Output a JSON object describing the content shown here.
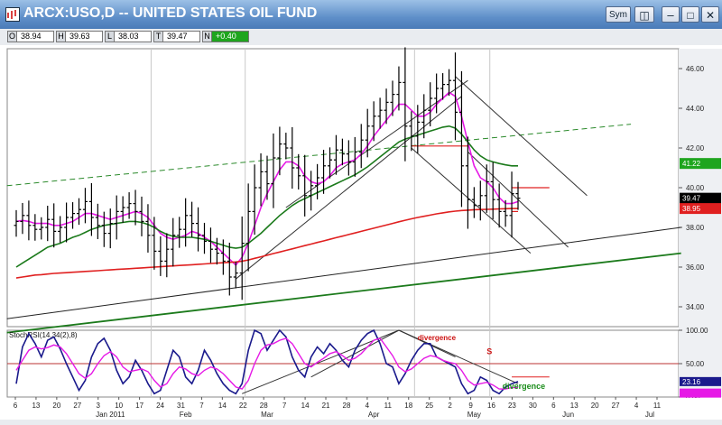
{
  "window": {
    "title": "ARCX:USO,D -- UNITED STATES OIL FUND",
    "sym_button": "Sym",
    "minimize_symbol": "–",
    "maximize_symbol": "□",
    "close_symbol": "✕",
    "icon": "chart-icon"
  },
  "quote": {
    "open_label": "O",
    "open": "38.94",
    "high_label": "H",
    "high": "39.63",
    "low_label": "L",
    "low": "38.03",
    "close_label": "T",
    "close": "39.47",
    "change_label": "N",
    "change": "+0.40",
    "change_color": "#1ea51e"
  },
  "chart_data": [
    {
      "type": "line",
      "panel": "price",
      "price_style": "OHLC bars",
      "y_axis_ticks": [
        "46.00",
        "44.00",
        "42.00",
        "40.00",
        "38.00",
        "36.00",
        "34.00"
      ],
      "ylim": [
        33.0,
        47.0
      ],
      "x_tick_labels": [
        "6",
        "13",
        "20",
        "27",
        "3",
        "10",
        "17",
        "24",
        "31",
        "7",
        "14",
        "22",
        "28",
        "7",
        "14",
        "21",
        "28",
        "4",
        "11",
        "18",
        "25",
        "2",
        "9",
        "16",
        "23",
        "30",
        "6",
        "13",
        "20",
        "27",
        "4",
        "11"
      ],
      "month_labels": [
        "Jan 2011",
        "Feb",
        "Mar",
        "Apr",
        "May",
        "Jun",
        "Jul"
      ],
      "price_labels": [
        {
          "text": "41.22",
          "bg": "#1ea51e",
          "value": 41.22
        },
        {
          "text": "39.47",
          "bg": "#000000",
          "value": 39.47
        },
        {
          "text": "38.95",
          "bg": "#e02020",
          "value": 38.95
        }
      ],
      "close": [
        38.3,
        38.6,
        38.1,
        37.9,
        38.0,
        38.4,
        37.8,
        38.0,
        38.5,
        38.7,
        38.9,
        39.3,
        38.5,
        38.1,
        37.7,
        38.2,
        38.8,
        39.0,
        39.2,
        38.8,
        38.3,
        37.6,
        36.8,
        36.3,
        36.9,
        37.6,
        37.9,
        38.6,
        38.2,
        37.6,
        37.3,
        36.9,
        36.7,
        36.3,
        35.5,
        35.7,
        37.2,
        38.8,
        40.0,
        40.8,
        40.2,
        41.5,
        42.2,
        42.0,
        41.0,
        40.6,
        39.6,
        40.1,
        40.5,
        41.1,
        41.4,
        41.9,
        41.7,
        41.3,
        41.8,
        42.4,
        43.1,
        43.6,
        43.9,
        44.3,
        44.7,
        45.3,
        43.1,
        42.6,
        43.3,
        43.9,
        44.5,
        45.0,
        45.2,
        45.4,
        43.8,
        41.1,
        39.4,
        39.1,
        39.6,
        40.3,
        39.4,
        38.8,
        38.6,
        39.7,
        39.47
      ],
      "series": [
        {
          "name": "",
          "color": "#e619e6",
          "values": [
            38.3,
            38.35,
            38.3,
            38.2,
            38.2,
            38.2,
            38.1,
            38.1,
            38.2,
            38.3,
            38.5,
            38.7,
            38.7,
            38.6,
            38.5,
            38.4,
            38.5,
            38.6,
            38.7,
            38.8,
            38.7,
            38.5,
            38.1,
            37.7,
            37.5,
            37.4,
            37.5,
            37.6,
            37.8,
            37.7,
            37.5,
            37.3,
            37.0,
            36.7,
            36.4,
            36.1,
            36.5,
            37.2,
            38.1,
            39.0,
            39.7,
            40.3,
            40.9,
            41.3,
            41.3,
            41.1,
            40.6,
            40.3,
            40.2,
            40.3,
            40.6,
            41.0,
            41.2,
            41.3,
            41.4,
            41.7,
            42.1,
            42.6,
            43.0,
            43.4,
            43.8,
            44.2,
            44.2,
            43.9,
            43.6,
            43.6,
            43.8,
            44.2,
            44.5,
            44.8,
            44.6,
            43.6,
            42.3,
            41.1,
            40.5,
            40.3,
            40.0,
            39.5,
            39.2,
            39.2,
            39.3
          ]
        },
        {
          "name": "",
          "color": "#1b7a1b",
          "values": [
            36.0,
            36.2,
            36.4,
            36.6,
            36.8,
            37.0,
            37.1,
            37.2,
            37.35,
            37.5,
            37.6,
            37.75,
            37.9,
            38.0,
            38.1,
            38.15,
            38.2,
            38.25,
            38.3,
            38.3,
            38.25,
            38.15,
            38.0,
            37.8,
            37.65,
            37.55,
            37.5,
            37.5,
            37.5,
            37.45,
            37.4,
            37.3,
            37.2,
            37.1,
            37.0,
            36.95,
            37.0,
            37.2,
            37.45,
            37.7,
            38.0,
            38.3,
            38.6,
            38.85,
            39.1,
            39.3,
            39.45,
            39.6,
            39.75,
            39.9,
            40.05,
            40.2,
            40.35,
            40.5,
            40.65,
            40.85,
            41.05,
            41.3,
            41.55,
            41.8,
            42.05,
            42.3,
            42.45,
            42.55,
            42.65,
            42.75,
            42.85,
            42.95,
            43.05,
            43.1,
            43.0,
            42.7,
            42.3,
            41.9,
            41.6,
            41.4,
            41.3,
            41.22,
            41.15,
            41.1,
            41.1
          ]
        },
        {
          "name": "",
          "color": "#e02020",
          "values": [
            35.45,
            35.5,
            35.55,
            35.6,
            35.62,
            35.65,
            35.68,
            35.7,
            35.72,
            35.74,
            35.76,
            35.78,
            35.8,
            35.82,
            35.84,
            35.86,
            35.88,
            35.9,
            35.92,
            35.94,
            35.96,
            35.98,
            36.0,
            36.02,
            36.04,
            36.06,
            36.08,
            36.1,
            36.12,
            36.14,
            36.16,
            36.18,
            36.2,
            36.22,
            36.24,
            36.26,
            36.3,
            36.36,
            36.44,
            36.52,
            36.6,
            36.68,
            36.76,
            36.84,
            36.92,
            37.0,
            37.08,
            37.16,
            37.24,
            37.32,
            37.4,
            37.48,
            37.56,
            37.64,
            37.72,
            37.8,
            37.88,
            37.96,
            38.04,
            38.12,
            38.2,
            38.28,
            38.36,
            38.43,
            38.5,
            38.56,
            38.62,
            38.68,
            38.73,
            38.78,
            38.82,
            38.85,
            38.87,
            38.89,
            38.9,
            38.91,
            38.92,
            38.93,
            38.94,
            38.95,
            38.95
          ]
        }
      ],
      "annotations": []
    },
    {
      "type": "line",
      "panel": "indicator",
      "title": "StochRSI(14,34(2),8)",
      "y_axis_ticks": [
        "100.00",
        "50.00",
        "0.00"
      ],
      "ylim": [
        0,
        100
      ],
      "price_labels": [
        {
          "text": "23.16",
          "bg": "#1a1a8c",
          "value": 23.16
        },
        {
          "text": "",
          "bg": "#e619e6",
          "value": 14
        }
      ],
      "series": [
        {
          "name": "",
          "color": "#1a1a8c",
          "values": [
            20,
            75,
            95,
            80,
            60,
            85,
            90,
            72,
            50,
            30,
            10,
            25,
            60,
            80,
            88,
            70,
            40,
            20,
            30,
            55,
            40,
            20,
            5,
            10,
            40,
            70,
            60,
            30,
            20,
            40,
            70,
            55,
            35,
            20,
            10,
            5,
            20,
            70,
            100,
            95,
            70,
            85,
            100,
            90,
            60,
            40,
            30,
            60,
            75,
            65,
            80,
            70,
            55,
            45,
            70,
            85,
            95,
            100,
            80,
            50,
            45,
            20,
            35,
            55,
            70,
            80,
            80,
            60,
            55,
            50,
            45,
            20,
            5,
            10,
            30,
            25,
            10,
            5,
            15,
            20,
            23.16
          ]
        },
        {
          "name": "",
          "color": "#e619e6",
          "values": [
            40,
            55,
            70,
            75,
            72,
            74,
            78,
            75,
            65,
            50,
            35,
            28,
            35,
            50,
            62,
            68,
            60,
            45,
            38,
            40,
            42,
            38,
            25,
            15,
            20,
            35,
            45,
            42,
            35,
            32,
            40,
            45,
            42,
            35,
            25,
            15,
            12,
            25,
            50,
            70,
            78,
            80,
            85,
            88,
            80,
            65,
            50,
            45,
            52,
            58,
            65,
            68,
            62,
            55,
            58,
            65,
            75,
            85,
            88,
            75,
            62,
            45,
            38,
            42,
            50,
            58,
            62,
            60,
            55,
            52,
            50,
            40,
            25,
            18,
            20,
            22,
            18,
            12,
            12,
            14,
            14
          ]
        }
      ],
      "annotations": [
        {
          "text": "divergence",
          "color": "#cc1111"
        },
        {
          "text": "S",
          "color": "#cc1111"
        },
        {
          "text": "divergence",
          "color": "#1a8c1a"
        }
      ]
    }
  ]
}
